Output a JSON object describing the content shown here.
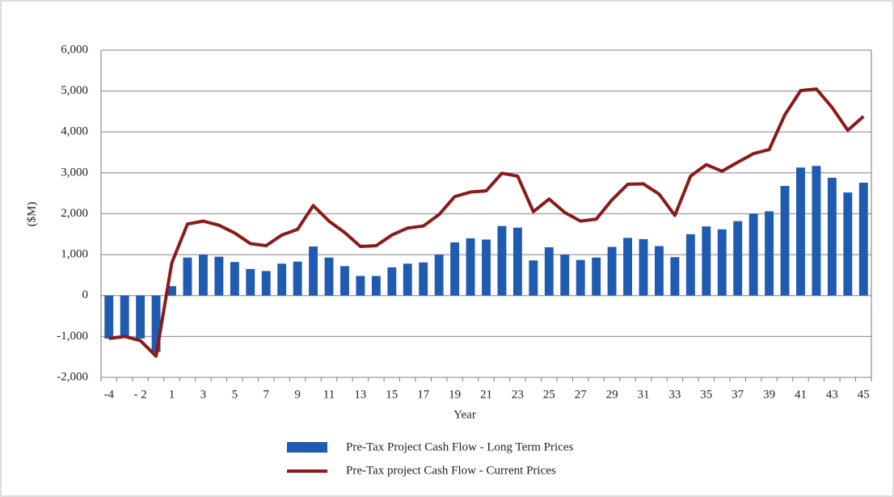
{
  "chart_data": {
    "type": "bar-line",
    "x_label": "Year",
    "y_label": "($M)",
    "categories": [
      "-4",
      null,
      "- 2",
      null,
      "1",
      null,
      "3",
      null,
      "5",
      null,
      "7",
      null,
      "9",
      null,
      "11",
      null,
      "13",
      null,
      "15",
      null,
      "17",
      null,
      "19",
      null,
      "21",
      null,
      "23",
      null,
      "25",
      null,
      "27",
      null,
      "29",
      null,
      "31",
      null,
      "33",
      null,
      "35",
      null,
      "37",
      null,
      "39",
      null,
      "41",
      null,
      "43",
      null,
      "45"
    ],
    "series": [
      {
        "name": "Pre-Tax Project Cash Flow - Long Term Prices",
        "kind": "bar",
        "color": "#1f5bb0",
        "values": [
          -1050,
          -1000,
          -1050,
          -1380,
          230,
          930,
          1000,
          950,
          820,
          650,
          600,
          780,
          830,
          1200,
          930,
          720,
          480,
          480,
          690,
          780,
          810,
          1000,
          1300,
          1400,
          1370,
          1700,
          1660,
          860,
          1180,
          1000,
          870,
          930,
          1190,
          1410,
          1380,
          1210,
          940,
          1500,
          1690,
          1620,
          1820,
          2000,
          2060,
          2680,
          3130,
          3170,
          2880,
          2520,
          2760
        ]
      },
      {
        "name": "Pre-Tax project Cash Flow - Current Prices",
        "kind": "line",
        "color": "#8b1a1a",
        "values": [
          -1050,
          -1000,
          -1100,
          -1480,
          800,
          1750,
          1820,
          1720,
          1530,
          1270,
          1220,
          1480,
          1620,
          2200,
          1820,
          1540,
          1200,
          1220,
          1480,
          1650,
          1700,
          1980,
          2420,
          2530,
          2560,
          2990,
          2920,
          2050,
          2360,
          2030,
          1820,
          1870,
          2340,
          2720,
          2730,
          2480,
          1960,
          2920,
          3200,
          3040,
          3260,
          3470,
          3570,
          4420,
          5010,
          5050,
          4600,
          4040,
          4380
        ]
      }
    ],
    "ylim": [
      -2000,
      6000
    ],
    "yticks": [
      {
        "value": -2000,
        "label": "-2,000"
      },
      {
        "value": -1000,
        "label": "-1,000"
      },
      0,
      {
        "value": 1000,
        "label": "1,000"
      },
      {
        "value": 2000,
        "label": "2,000"
      },
      {
        "value": 3000,
        "label": "3,000"
      },
      {
        "value": 4000,
        "label": "4,000"
      },
      {
        "value": 5000,
        "label": "5,000"
      },
      {
        "value": 6000,
        "label": "6,000"
      }
    ],
    "grid": true,
    "legend": "bottom"
  }
}
